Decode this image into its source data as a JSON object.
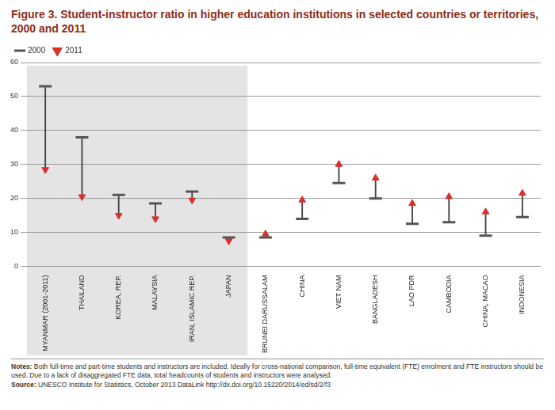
{
  "chart_data": {
    "type": "dumbbell",
    "title": "Figure 3. Student-instructor ratio in higher education institutions in selected countries or territories, 2000 and 2011",
    "categories": [
      "MYANMAR (2001-2011)",
      "THAILAND",
      "KOREA, REP.",
      "MALAYSIA",
      "IRAN, ISLAMIC REP.",
      "JAPAN",
      "BRUNEI DARUSSALAM",
      "CHINA",
      "VIET NAM",
      "BANGLADESH",
      "LAO PDR",
      "CAMBODIA",
      "CHINA, MACAO",
      "INDONESIA"
    ],
    "series": [
      {
        "name": "2000",
        "color": "#555555",
        "marker": "line",
        "values": [
          53,
          38,
          21,
          18.5,
          22,
          8.5,
          8.5,
          14,
          24.5,
          20,
          12.5,
          13,
          9,
          14.5
        ]
      },
      {
        "name": "2011",
        "color": "#d9302b",
        "marker": "triangle",
        "values": [
          28.5,
          20.5,
          15,
          14,
          19.5,
          7.5,
          9.5,
          19.5,
          30,
          26,
          18.5,
          20.5,
          16,
          21.5
        ]
      }
    ],
    "ylim": [
      0,
      60
    ],
    "yticks": [
      0,
      10,
      20,
      30,
      40,
      50,
      60
    ],
    "grid": true,
    "legend": "top-left",
    "notes": "Notes: Both full-time and part-time students and instructors are included. Ideally for cross-national comparison, full-time equivalent (FTE) enrolment and FTE instructors should be used. Due to a lack of disaggregated FTE data, total headcounts of students and instructors were analysed.",
    "source": "Source: UNESCO Institute for Statistics, October 2013 DataLink http://dx.doi.org/10.15220/2014/ed/sd/2/f3"
  }
}
